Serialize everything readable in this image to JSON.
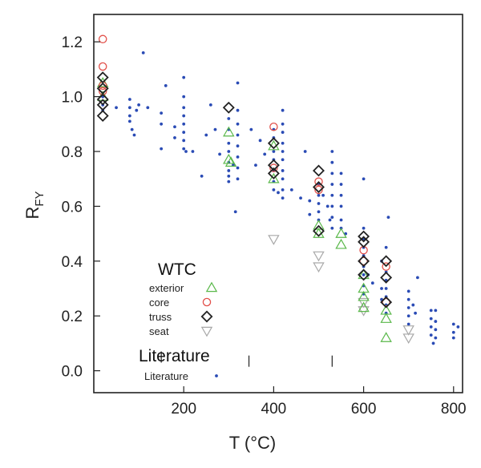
{
  "chart_data": {
    "type": "scatter",
    "xlabel": "T (°C)",
    "ylabel": "R",
    "ylabel_sub": "FY",
    "xlim": [
      0,
      820
    ],
    "ylim": [
      -0.08,
      1.3
    ],
    "x_ticks": [
      200,
      400,
      600,
      800
    ],
    "x_tick_labels": [
      "200",
      "400",
      "600",
      "800"
    ],
    "y_ticks": [
      0.0,
      0.2,
      0.4,
      0.6,
      0.8,
      1.0,
      1.2
    ],
    "y_tick_labels": [
      "0.0",
      "0.2",
      "0.4",
      "0.6",
      "0.8",
      "1.0",
      "1.2"
    ],
    "grid": false,
    "legend_groups": [
      {
        "title": "WTC",
        "entries": [
          "exterior",
          "core",
          "truss",
          "seat"
        ]
      },
      {
        "title": "Literature",
        "entries": [
          "Literature"
        ]
      }
    ],
    "colors": {
      "exterior": "#5ab84a",
      "core": "#e2504a",
      "truss": "#222222",
      "seat": "#a8a8a8",
      "Literature": "#2a4bb5"
    },
    "series": [
      {
        "name": "exterior",
        "marker": "triangle-up",
        "points": [
          [
            20,
            1.05
          ],
          [
            20,
            1.0
          ],
          [
            300,
            0.87
          ],
          [
            300,
            0.77
          ],
          [
            305,
            0.76
          ],
          [
            400,
            0.82
          ],
          [
            400,
            0.7
          ],
          [
            500,
            0.53
          ],
          [
            500,
            0.5
          ],
          [
            550,
            0.5
          ],
          [
            550,
            0.46
          ],
          [
            600,
            0.35
          ],
          [
            600,
            0.3
          ],
          [
            600,
            0.27
          ],
          [
            600,
            0.23
          ],
          [
            650,
            0.22
          ],
          [
            650,
            0.19
          ],
          [
            650,
            0.12
          ]
        ]
      },
      {
        "name": "core",
        "marker": "circle",
        "points": [
          [
            20,
            1.21
          ],
          [
            20,
            1.11
          ],
          [
            20,
            1.04
          ],
          [
            20,
            1.02
          ],
          [
            400,
            0.89
          ],
          [
            400,
            0.74
          ],
          [
            500,
            0.69
          ],
          [
            500,
            0.66
          ],
          [
            600,
            0.44
          ],
          [
            600,
            0.4
          ],
          [
            650,
            0.38
          ],
          [
            650,
            0.25
          ]
        ]
      },
      {
        "name": "truss",
        "marker": "diamond",
        "points": [
          [
            20,
            1.07
          ],
          [
            20,
            1.03
          ],
          [
            20,
            0.99
          ],
          [
            20,
            0.97
          ],
          [
            20,
            0.93
          ],
          [
            300,
            0.96
          ],
          [
            400,
            0.83
          ],
          [
            400,
            0.75
          ],
          [
            400,
            0.72
          ],
          [
            500,
            0.73
          ],
          [
            500,
            0.67
          ],
          [
            500,
            0.51
          ],
          [
            600,
            0.49
          ],
          [
            600,
            0.47
          ],
          [
            600,
            0.4
          ],
          [
            600,
            0.35
          ],
          [
            650,
            0.4
          ],
          [
            650,
            0.34
          ],
          [
            650,
            0.25
          ]
        ]
      },
      {
        "name": "seat",
        "marker": "triangle-down",
        "points": [
          [
            400,
            0.48
          ],
          [
            500,
            0.42
          ],
          [
            500,
            0.38
          ],
          [
            600,
            0.25
          ],
          [
            600,
            0.22
          ],
          [
            700,
            0.15
          ],
          [
            700,
            0.12
          ]
        ]
      },
      {
        "name": "Literature",
        "marker": "dot",
        "points": [
          [
            20,
            1.0
          ],
          [
            20,
            0.95
          ],
          [
            20,
            0.97
          ],
          [
            50,
            0.96
          ],
          [
            80,
            0.99
          ],
          [
            80,
            0.96
          ],
          [
            80,
            0.93
          ],
          [
            80,
            0.91
          ],
          [
            85,
            0.88
          ],
          [
            90,
            0.86
          ],
          [
            95,
            0.95
          ],
          [
            100,
            0.97
          ],
          [
            110,
            1.16
          ],
          [
            120,
            0.96
          ],
          [
            150,
            0.94
          ],
          [
            150,
            0.9
          ],
          [
            150,
            0.81
          ],
          [
            160,
            1.04
          ],
          [
            180,
            0.89
          ],
          [
            180,
            0.85
          ],
          [
            200,
            1.07
          ],
          [
            200,
            1.0
          ],
          [
            200,
            0.96
          ],
          [
            200,
            0.93
          ],
          [
            200,
            0.9
          ],
          [
            200,
            0.87
          ],
          [
            200,
            0.84
          ],
          [
            200,
            0.81
          ],
          [
            205,
            0.8
          ],
          [
            220,
            0.8
          ],
          [
            240,
            0.71
          ],
          [
            250,
            0.86
          ],
          [
            260,
            0.97
          ],
          [
            270,
            0.88
          ],
          [
            280,
            0.79
          ],
          [
            300,
            0.92
          ],
          [
            300,
            0.88
          ],
          [
            300,
            0.83
          ],
          [
            300,
            0.8
          ],
          [
            300,
            0.76
          ],
          [
            300,
            0.73
          ],
          [
            300,
            0.71
          ],
          [
            300,
            0.69
          ],
          [
            310,
            0.75
          ],
          [
            315,
            0.58
          ],
          [
            320,
            1.05
          ],
          [
            320,
            0.95
          ],
          [
            320,
            0.9
          ],
          [
            320,
            0.86
          ],
          [
            320,
            0.82
          ],
          [
            320,
            0.78
          ],
          [
            320,
            0.74
          ],
          [
            320,
            0.7
          ],
          [
            350,
            0.88
          ],
          [
            360,
            0.75
          ],
          [
            370,
            0.84
          ],
          [
            380,
            0.79
          ],
          [
            400,
            0.88
          ],
          [
            400,
            0.85
          ],
          [
            400,
            0.8
          ],
          [
            400,
            0.77
          ],
          [
            400,
            0.73
          ],
          [
            400,
            0.69
          ],
          [
            400,
            0.66
          ],
          [
            410,
            0.65
          ],
          [
            420,
            0.95
          ],
          [
            420,
            0.9
          ],
          [
            420,
            0.87
          ],
          [
            420,
            0.83
          ],
          [
            420,
            0.8
          ],
          [
            420,
            0.77
          ],
          [
            420,
            0.73
          ],
          [
            420,
            0.7
          ],
          [
            420,
            0.66
          ],
          [
            420,
            0.63
          ],
          [
            440,
            0.66
          ],
          [
            460,
            0.63
          ],
          [
            470,
            0.8
          ],
          [
            480,
            0.62
          ],
          [
            480,
            0.57
          ],
          [
            500,
            0.68
          ],
          [
            500,
            0.64
          ],
          [
            500,
            0.61
          ],
          [
            500,
            0.58
          ],
          [
            500,
            0.55
          ],
          [
            510,
            0.64
          ],
          [
            520,
            0.6
          ],
          [
            525,
            0.55
          ],
          [
            530,
            0.8
          ],
          [
            530,
            0.76
          ],
          [
            530,
            0.72
          ],
          [
            530,
            0.68
          ],
          [
            530,
            0.64
          ],
          [
            530,
            0.6
          ],
          [
            530,
            0.56
          ],
          [
            530,
            0.52
          ],
          [
            550,
            0.72
          ],
          [
            550,
            0.68
          ],
          [
            550,
            0.64
          ],
          [
            550,
            0.6
          ],
          [
            550,
            0.55
          ],
          [
            550,
            0.52
          ],
          [
            560,
            0.5
          ],
          [
            600,
            0.7
          ],
          [
            600,
            0.52
          ],
          [
            600,
            0.48
          ],
          [
            600,
            0.45
          ],
          [
            600,
            0.42
          ],
          [
            600,
            0.38
          ],
          [
            600,
            0.35
          ],
          [
            600,
            0.31
          ],
          [
            600,
            0.28
          ],
          [
            610,
            0.35
          ],
          [
            620,
            0.32
          ],
          [
            640,
            0.4
          ],
          [
            640,
            0.3
          ],
          [
            640,
            0.26
          ],
          [
            650,
            0.45
          ],
          [
            650,
            0.36
          ],
          [
            650,
            0.33
          ],
          [
            650,
            0.3
          ],
          [
            650,
            0.27
          ],
          [
            650,
            0.24
          ],
          [
            650,
            0.21
          ],
          [
            655,
            0.56
          ],
          [
            700,
            0.29
          ],
          [
            700,
            0.26
          ],
          [
            700,
            0.23
          ],
          [
            700,
            0.2
          ],
          [
            700,
            0.17
          ],
          [
            710,
            0.24
          ],
          [
            715,
            0.21
          ],
          [
            720,
            0.34
          ],
          [
            750,
            0.22
          ],
          [
            750,
            0.19
          ],
          [
            750,
            0.16
          ],
          [
            750,
            0.13
          ],
          [
            755,
            0.1
          ],
          [
            760,
            0.22
          ],
          [
            760,
            0.18
          ],
          [
            760,
            0.15
          ],
          [
            760,
            0.12
          ],
          [
            800,
            0.17
          ],
          [
            800,
            0.14
          ],
          [
            800,
            0.12
          ],
          [
            810,
            0.16
          ]
        ]
      }
    ]
  }
}
